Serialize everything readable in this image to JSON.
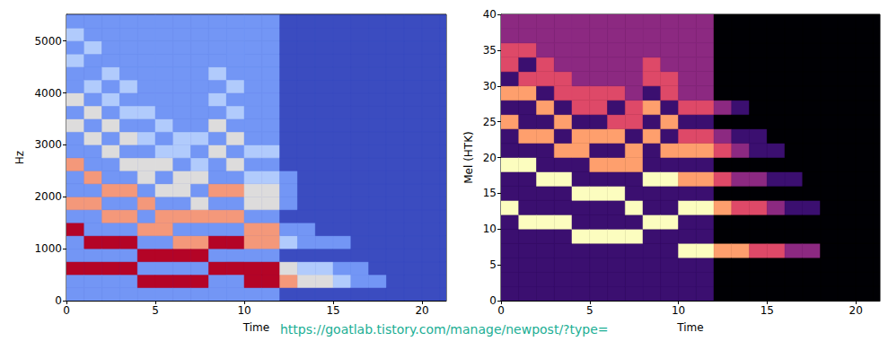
{
  "chart_data": [
    {
      "type": "heatmap",
      "xlabel": "Time",
      "ylabel": "Hz",
      "xlim": [
        0,
        21.36
      ],
      "xticks": [
        0,
        5,
        10,
        15,
        20
      ],
      "ylim": [
        0,
        5512.5
      ],
      "yticks": [
        0,
        1000,
        2000,
        3000,
        4000,
        5000
      ],
      "x_edges": [
        0,
        1,
        2,
        3,
        4,
        5,
        6,
        7,
        8,
        9,
        10,
        11,
        12,
        13,
        14,
        15,
        16,
        17,
        18,
        19,
        20,
        21,
        22
      ],
      "y_edges": [
        0,
        250,
        500,
        750,
        1000,
        1250,
        1500,
        1750,
        2000,
        2250,
        2500,
        2750,
        3000,
        3250,
        3500,
        3750,
        4000,
        4250,
        4500,
        4750,
        5000,
        5250,
        5500
      ],
      "cells": [
        [
          1,
          1,
          5,
          1,
          1,
          5,
          1,
          4,
          1,
          1,
          4,
          1,
          1,
          3,
          1,
          3,
          1,
          1,
          2,
          1,
          2,
          1
        ],
        [
          1,
          1,
          5,
          1,
          5,
          1,
          1,
          4,
          1,
          4,
          1,
          1,
          3,
          1,
          3,
          1,
          2,
          1,
          1,
          2,
          1,
          1
        ],
        [
          1,
          1,
          5,
          1,
          5,
          1,
          4,
          1,
          4,
          1,
          1,
          3,
          1,
          3,
          1,
          2,
          1,
          2,
          1,
          1,
          1,
          1
        ],
        [
          1,
          1,
          5,
          1,
          5,
          1,
          4,
          1,
          4,
          1,
          3,
          1,
          3,
          1,
          2,
          1,
          2,
          1,
          1,
          1,
          1,
          1
        ],
        [
          1,
          5,
          1,
          5,
          1,
          4,
          1,
          4,
          1,
          3,
          3,
          1,
          2,
          1,
          2,
          1,
          1,
          1,
          1,
          1,
          1,
          1
        ],
        [
          1,
          5,
          1,
          5,
          1,
          4,
          4,
          1,
          3,
          1,
          3,
          2,
          1,
          2,
          1,
          1,
          1,
          1,
          1,
          1,
          1,
          1
        ],
        [
          1,
          5,
          1,
          5,
          4,
          1,
          4,
          1,
          3,
          3,
          1,
          2,
          2,
          1,
          1,
          1,
          1,
          1,
          1,
          1,
          1,
          1
        ],
        [
          1,
          5,
          1,
          5,
          4,
          1,
          4,
          3,
          1,
          3,
          2,
          1,
          2,
          1,
          1,
          1,
          1,
          1,
          1,
          1,
          1,
          1
        ],
        [
          1,
          1,
          5,
          1,
          5,
          1,
          4,
          1,
          4,
          1,
          1,
          3,
          1,
          3,
          1,
          2,
          1,
          2,
          1,
          1,
          1,
          1
        ],
        [
          1,
          1,
          5,
          1,
          5,
          1,
          4,
          1,
          4,
          1,
          3,
          1,
          3,
          1,
          2,
          1,
          2,
          1,
          1,
          1,
          1,
          1
        ],
        [
          1,
          5,
          5,
          1,
          4,
          4,
          1,
          3,
          3,
          2,
          1,
          2,
          1,
          1,
          1,
          1,
          1,
          1,
          1,
          1,
          1,
          1
        ],
        [
          1,
          5,
          5,
          1,
          4,
          4,
          1,
          3,
          3,
          2,
          1,
          2,
          1,
          1,
          1,
          1,
          1,
          1,
          1,
          1,
          1,
          1
        ],
        [
          0,
          4,
          3,
          0,
          2,
          1,
          0,
          1,
          1,
          1,
          0,
          0,
          0,
          0,
          0,
          0,
          0,
          0,
          0,
          0,
          0,
          0
        ],
        [
          0,
          3,
          2,
          0,
          1,
          1,
          0,
          0,
          0,
          0,
          0,
          0,
          0,
          0,
          0,
          0,
          0,
          0,
          0,
          0,
          0,
          0
        ],
        [
          0,
          3,
          2,
          0,
          1,
          0,
          0,
          0,
          0,
          0,
          0,
          0,
          0,
          0,
          0,
          0,
          0,
          0,
          0,
          0,
          0,
          0
        ],
        [
          0,
          2,
          1,
          0,
          1,
          0,
          0,
          0,
          0,
          0,
          0,
          0,
          0,
          0,
          0,
          0,
          0,
          0,
          0,
          0,
          0,
          0
        ],
        [
          0,
          1,
          1,
          0,
          0,
          0,
          0,
          0,
          0,
          0,
          0,
          0,
          0,
          0,
          0,
          0,
          0,
          0,
          0,
          0,
          0,
          0
        ],
        [
          0,
          1,
          0,
          0,
          0,
          0,
          0,
          0,
          0,
          0,
          0,
          0,
          0,
          0,
          0,
          0,
          0,
          0,
          0,
          0,
          0,
          0
        ],
        [
          0,
          0,
          0,
          0,
          0,
          0,
          0,
          0,
          0,
          0,
          0,
          0,
          0,
          0,
          0,
          0,
          0,
          0,
          0,
          0,
          0,
          0
        ],
        [
          0,
          0,
          0,
          0,
          0,
          0,
          0,
          0,
          0,
          0,
          0,
          0,
          0,
          0,
          0,
          0,
          0,
          0,
          0,
          0,
          0,
          0
        ],
        [
          0,
          0,
          0,
          0,
          0,
          0,
          0,
          0,
          0,
          0,
          0,
          0,
          0,
          0,
          0,
          0,
          0,
          0,
          0,
          0,
          0,
          0
        ],
        [
          0,
          0,
          0,
          0,
          0,
          0,
          0,
          0,
          0,
          0,
          0,
          0,
          0,
          0,
          0,
          0,
          0,
          0,
          0,
          0,
          0,
          0
        ]
      ]
    },
    {
      "type": "heatmap",
      "xlabel": "Time",
      "ylabel": "Mel (HTK)",
      "xlim": [
        0,
        21.36
      ],
      "xticks": [
        0,
        5,
        10,
        15,
        20
      ],
      "ylim": [
        0,
        40
      ],
      "yticks": [
        0,
        5,
        10,
        15,
        20,
        25,
        30,
        35,
        40
      ],
      "x_edges": [
        0,
        1,
        2,
        3,
        4,
        5,
        6,
        7,
        8,
        9,
        10,
        11,
        12,
        13,
        14,
        15,
        16,
        17,
        18,
        19,
        20,
        21,
        22
      ],
      "y_edges": [
        0,
        2,
        4,
        6,
        8,
        10,
        12,
        14,
        16,
        18,
        20,
        22,
        24,
        26,
        28,
        30,
        32,
        34,
        36,
        38,
        40
      ],
      "cells": [
        [
          1,
          1,
          1,
          1,
          1,
          1,
          5,
          1,
          1,
          5,
          1,
          1,
          4,
          1,
          4,
          1,
          3,
          3,
          2,
          2
        ],
        [
          1,
          1,
          1,
          1,
          1,
          5,
          1,
          1,
          1,
          5,
          1,
          4,
          1,
          1,
          4,
          3,
          1,
          3,
          2,
          2
        ],
        [
          1,
          1,
          1,
          1,
          1,
          5,
          1,
          1,
          5,
          1,
          1,
          4,
          1,
          4,
          1,
          3,
          3,
          2,
          2,
          2
        ],
        [
          1,
          1,
          1,
          1,
          1,
          5,
          1,
          1,
          5,
          1,
          4,
          1,
          4,
          1,
          3,
          3,
          2,
          2,
          2,
          2
        ],
        [
          1,
          1,
          1,
          1,
          5,
          1,
          1,
          5,
          1,
          1,
          4,
          4,
          1,
          3,
          3,
          2,
          2,
          2,
          2,
          2
        ],
        [
          1,
          1,
          1,
          1,
          5,
          1,
          1,
          5,
          1,
          4,
          1,
          4,
          1,
          3,
          3,
          2,
          2,
          2,
          2,
          2
        ],
        [
          1,
          1,
          1,
          1,
          5,
          1,
          1,
          5,
          1,
          4,
          1,
          4,
          3,
          1,
          3,
          2,
          2,
          2,
          2,
          2
        ],
        [
          1,
          1,
          1,
          1,
          5,
          1,
          5,
          1,
          1,
          4,
          4,
          1,
          3,
          3,
          2,
          2,
          2,
          2,
          2,
          2
        ],
        [
          1,
          1,
          1,
          1,
          1,
          5,
          1,
          1,
          5,
          1,
          1,
          4,
          1,
          4,
          1,
          3,
          3,
          2,
          2,
          2
        ],
        [
          1,
          1,
          1,
          1,
          1,
          5,
          1,
          1,
          5,
          1,
          4,
          1,
          4,
          1,
          3,
          3,
          2,
          2,
          2,
          2
        ],
        [
          1,
          1,
          1,
          5,
          1,
          1,
          5,
          1,
          4,
          1,
          4,
          3,
          1,
          3,
          2,
          2,
          2,
          2,
          2,
          2
        ],
        [
          1,
          1,
          1,
          5,
          1,
          1,
          5,
          1,
          4,
          1,
          4,
          3,
          1,
          3,
          2,
          2,
          2,
          2,
          2,
          2
        ],
        [
          0,
          0,
          0,
          4,
          0,
          0,
          4,
          0,
          3,
          0,
          3,
          2,
          0,
          2,
          0,
          0,
          0,
          0,
          0,
          0
        ],
        [
          0,
          0,
          0,
          4,
          0,
          0,
          3,
          0,
          2,
          0,
          2,
          1,
          0,
          1,
          0,
          0,
          0,
          0,
          0,
          0
        ],
        [
          0,
          0,
          0,
          3,
          0,
          0,
          3,
          0,
          2,
          0,
          1,
          1,
          0,
          0,
          0,
          0,
          0,
          0,
          0,
          0
        ],
        [
          0,
          0,
          0,
          3,
          0,
          0,
          2,
          0,
          1,
          0,
          1,
          0,
          0,
          0,
          0,
          0,
          0,
          0,
          0,
          0
        ],
        [
          0,
          0,
          0,
          2,
          0,
          0,
          1,
          0,
          1,
          0,
          0,
          0,
          0,
          0,
          0,
          0,
          0,
          0,
          0,
          0
        ],
        [
          0,
          0,
          0,
          2,
          0,
          0,
          1,
          0,
          0,
          0,
          0,
          0,
          0,
          0,
          0,
          0,
          0,
          0,
          0,
          0
        ],
        [
          0,
          0,
          0,
          0,
          0,
          0,
          0,
          0,
          0,
          0,
          0,
          0,
          0,
          0,
          0,
          0,
          0,
          0,
          0,
          0
        ],
        [
          0,
          0,
          0,
          0,
          0,
          0,
          0,
          0,
          0,
          0,
          0,
          0,
          0,
          0,
          0,
          0,
          0,
          0,
          0,
          0
        ],
        [
          0,
          0,
          0,
          0,
          0,
          0,
          0,
          0,
          0,
          0,
          0,
          0,
          0,
          0,
          0,
          0,
          0,
          0,
          0,
          0
        ],
        [
          0,
          0,
          0,
          0,
          0,
          0,
          0,
          0,
          0,
          0,
          0,
          0,
          0,
          0,
          0,
          0,
          0,
          0,
          0,
          0
        ]
      ]
    }
  ],
  "annotation": "https://goatlab.tistory.com/manage/newpost/?type="
}
